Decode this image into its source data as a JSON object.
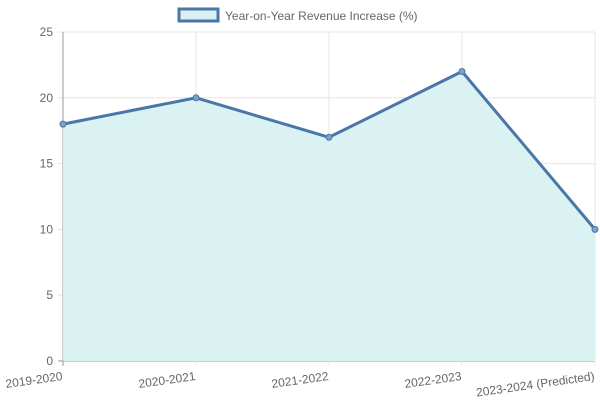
{
  "chart_data": {
    "type": "area",
    "title": "",
    "xlabel": "",
    "ylabel": "",
    "categories": [
      "2019-2020",
      "2020-2021",
      "2021-2022",
      "2022-2023",
      "2023-2024 (Predicted)"
    ],
    "series": [
      {
        "name": "Year-on-Year Revenue Increase (%)",
        "values": [
          18,
          20,
          17,
          22,
          10
        ]
      }
    ],
    "ylim": [
      0,
      25
    ],
    "yticks": [
      0,
      5,
      10,
      15,
      20,
      25
    ],
    "grid": true,
    "legend_position": "top",
    "colors": {
      "line": "#4a76a8",
      "fill": "#d9f1f2",
      "grid": "#e5e5e5",
      "axis": "#999999"
    }
  }
}
